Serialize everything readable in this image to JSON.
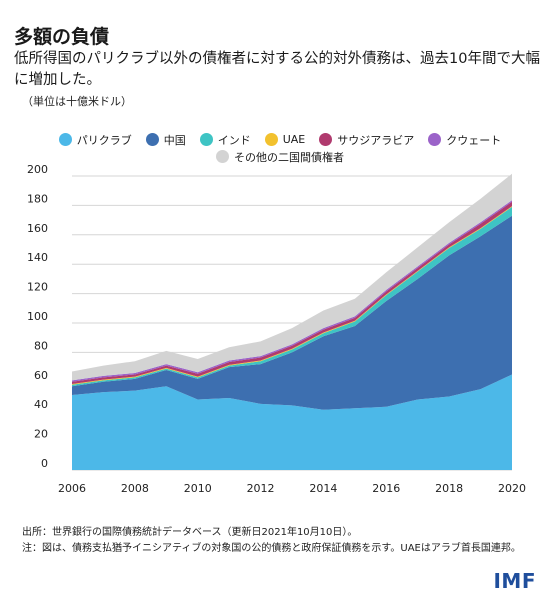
{
  "header": {
    "title": "多額の負債",
    "subtitle": "低所得国のパリクラブ以外の債権者に対する公的対外債務は、過去10年間で大幅に増加した。",
    "unit": "（単位は十億米ドル）"
  },
  "footer": {
    "source": "出所：世界銀行の国際債務統計データベース（更新日2021年10月10日）。",
    "note": "注：図は、債務支払猶予イニシアティブの対象国の公的債務と政府保証債務を示す。UAEはアラブ首長国連邦。",
    "logo": "IMF"
  },
  "chart_data": {
    "type": "area",
    "stacked": true,
    "x": [
      2006,
      2007,
      2008,
      2009,
      2010,
      2011,
      2012,
      2013,
      2014,
      2015,
      2016,
      2017,
      2018,
      2019,
      2020
    ],
    "xticks": [
      "2006",
      "2008",
      "2010",
      "2012",
      "2014",
      "2016",
      "2018",
      "2020"
    ],
    "yticks": [
      "0",
      "20",
      "40",
      "60",
      "80",
      "100",
      "120",
      "140",
      "160",
      "180",
      "200"
    ],
    "ylim": [
      0,
      200
    ],
    "grid": "horizontal",
    "legend_position": "top",
    "series": [
      {
        "name": "パリクラブ",
        "color": "#4cb8e8",
        "values": [
          51,
          53,
          54,
          57,
          48,
          49,
          45,
          44,
          41,
          42,
          43,
          48,
          50,
          55,
          65
        ]
      },
      {
        "name": "中国",
        "color": "#3d6fb0",
        "values": [
          6,
          7,
          8,
          11,
          14,
          21,
          27,
          36,
          50,
          56,
          72,
          82,
          96,
          104,
          108
        ]
      },
      {
        "name": "インド",
        "color": "#3ec4c4",
        "values": [
          1,
          1,
          1,
          1,
          1,
          1,
          2,
          2,
          2,
          3,
          4,
          5,
          5,
          5,
          6
        ]
      },
      {
        "name": "UAE",
        "color": "#f2c12e",
        "values": [
          0.5,
          0.5,
          0.5,
          0.5,
          0.5,
          0.5,
          0.5,
          0.5,
          0.5,
          0.5,
          0.5,
          0.5,
          0.5,
          0.5,
          0.5
        ]
      },
      {
        "name": "サウジアラビア",
        "color": "#b03a6e",
        "values": [
          1.5,
          1.5,
          1.5,
          1.5,
          2,
          2,
          2,
          2,
          2,
          2,
          2,
          2,
          2,
          3,
          3
        ]
      },
      {
        "name": "クウェート",
        "color": "#9b63c9",
        "values": [
          1,
          1,
          1,
          1,
          1,
          1,
          1,
          1,
          1,
          1,
          1,
          1,
          1,
          1,
          1
        ]
      },
      {
        "name": "その他の二国間債権者",
        "color": "#d3d3d3",
        "values": [
          6,
          7,
          8,
          9,
          9,
          9,
          10,
          11,
          12,
          12,
          12,
          13,
          14,
          16,
          18
        ]
      }
    ]
  }
}
